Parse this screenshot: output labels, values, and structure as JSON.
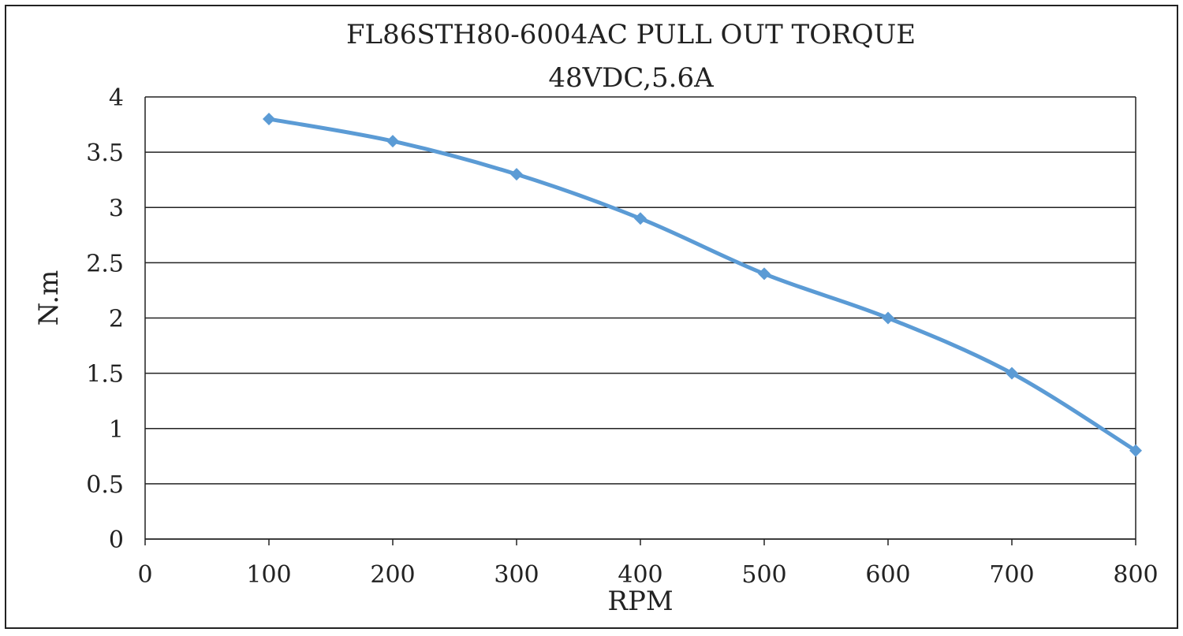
{
  "chart_data": {
    "type": "line",
    "title": "FL86STH80-6004AC PULL OUT TORQUE",
    "subtitle": "48VDC,5.6A",
    "xlabel": "RPM",
    "ylabel": "N.m",
    "xlim": [
      0,
      800
    ],
    "ylim": [
      0,
      4
    ],
    "x_ticks": [
      "0",
      "100",
      "200",
      "300",
      "400",
      "500",
      "600",
      "700",
      "800"
    ],
    "y_ticks": [
      "0",
      "0.5",
      "1",
      "1.5",
      "2",
      "2.5",
      "3",
      "3.5",
      "4"
    ],
    "grid": "horizontal",
    "legend": "none",
    "marker": "diamond",
    "line_color": "#5b9bd5",
    "x": [
      100,
      200,
      300,
      400,
      500,
      600,
      700,
      800
    ],
    "series": [
      {
        "values": [
          3.8,
          3.6,
          3.3,
          2.9,
          2.4,
          2.0,
          1.5,
          0.8
        ]
      }
    ]
  }
}
